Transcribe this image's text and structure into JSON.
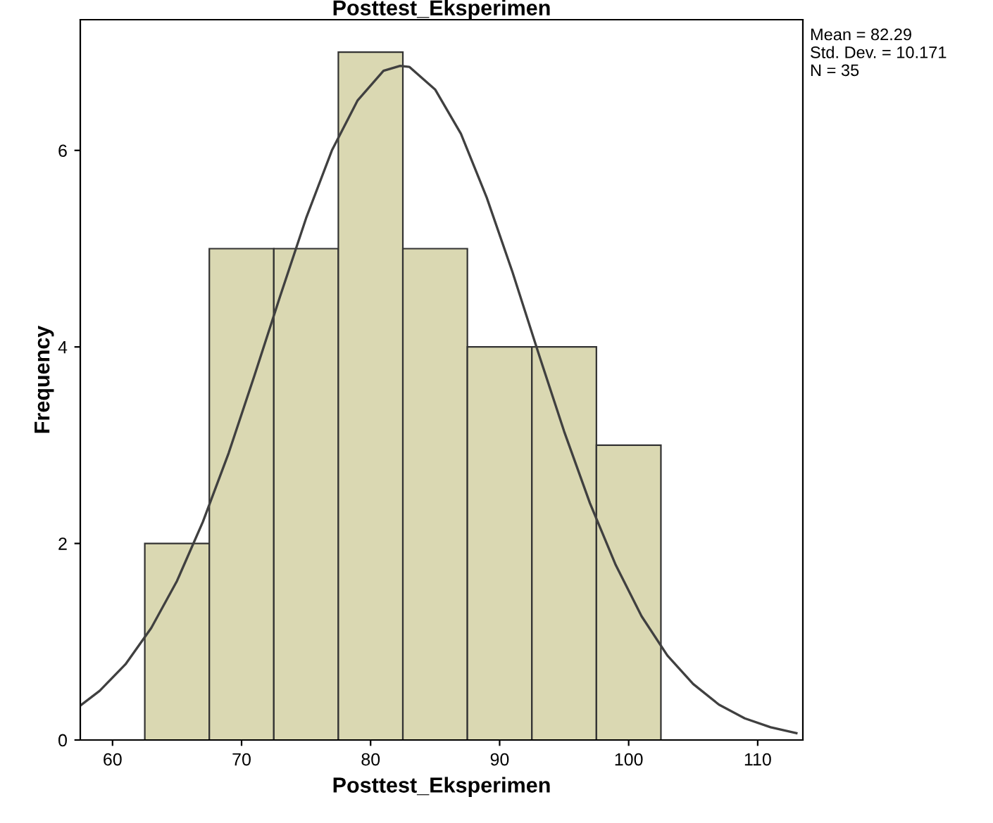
{
  "chart_data": {
    "type": "histogram",
    "title": "Posttest_Eksperimen",
    "xlabel": "Posttest_Eksperimen",
    "ylabel": "Frequency",
    "bins": [
      62.5,
      67.5,
      72.5,
      77.5,
      82.5,
      87.5,
      92.5,
      97.5,
      102.5
    ],
    "values": [
      2,
      5,
      5,
      7,
      5,
      4,
      4,
      3
    ],
    "color": "#dad8b2",
    "series": [
      {
        "type": "line",
        "color": "#404040",
        "x": [
          57.5,
          59,
          61,
          63,
          65,
          67,
          69,
          71,
          73,
          75,
          77,
          79,
          81,
          82.29,
          83,
          85,
          87,
          89,
          91,
          93,
          95,
          97,
          99,
          101,
          103,
          105,
          107,
          109,
          111,
          113
        ],
        "values": [
          0.35,
          0.5,
          0.77,
          1.14,
          1.62,
          2.22,
          2.92,
          3.71,
          4.52,
          5.31,
          6.0,
          6.51,
          6.81,
          6.86,
          6.85,
          6.62,
          6.17,
          5.52,
          4.76,
          3.94,
          3.14,
          2.41,
          1.78,
          1.26,
          0.86,
          0.57,
          0.36,
          0.22,
          0.13,
          0.07
        ]
      }
    ],
    "xlim": [
      57.5,
      113.5
    ],
    "xticks": [
      60,
      70,
      80,
      90,
      100,
      110
    ],
    "ylim": [
      0,
      7.33
    ],
    "yticks": [
      0,
      2,
      4,
      6
    ],
    "grid": false,
    "annotations": [
      "Mean = 82.29\nStd. Dev. = 10.171\nN = 35"
    ]
  }
}
